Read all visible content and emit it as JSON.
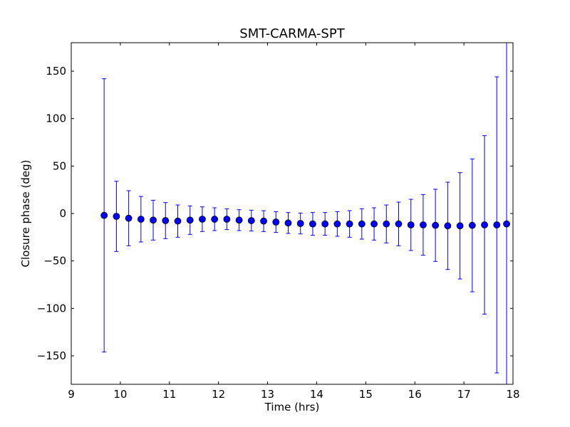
{
  "chart_data": {
    "type": "scatter",
    "title": "SMT-CARMA-SPT",
    "xlabel": "Time (hrs)",
    "ylabel": "Closure phase (deg)",
    "xlim": [
      9,
      18
    ],
    "ylim": [
      -180,
      180
    ],
    "xticks": [
      "9",
      "10",
      "11",
      "12",
      "13",
      "14",
      "15",
      "16",
      "17",
      "18"
    ],
    "yticks": [
      "−150",
      "−100",
      "−50",
      "0",
      "50",
      "100",
      "150"
    ],
    "grid": false,
    "marker_color": "#0000ff",
    "errorbar_color": "#0000ff",
    "points": [
      {
        "x": 9.67,
        "y": -2,
        "err_lo": 144,
        "err_hi": 144
      },
      {
        "x": 9.92,
        "y": -3,
        "err_lo": 37,
        "err_hi": 37
      },
      {
        "x": 10.17,
        "y": -5,
        "err_lo": 29,
        "err_hi": 29
      },
      {
        "x": 10.42,
        "y": -6,
        "err_lo": 24,
        "err_hi": 24
      },
      {
        "x": 10.67,
        "y": -7,
        "err_lo": 21,
        "err_hi": 21
      },
      {
        "x": 10.92,
        "y": -7.5,
        "err_lo": 19,
        "err_hi": 19
      },
      {
        "x": 11.17,
        "y": -8,
        "err_lo": 17,
        "err_hi": 17
      },
      {
        "x": 11.42,
        "y": -7,
        "err_lo": 15,
        "err_hi": 15
      },
      {
        "x": 11.67,
        "y": -6,
        "err_lo": 13,
        "err_hi": 13
      },
      {
        "x": 11.92,
        "y": -6,
        "err_lo": 12,
        "err_hi": 12
      },
      {
        "x": 12.17,
        "y": -6,
        "err_lo": 11,
        "err_hi": 11
      },
      {
        "x": 12.42,
        "y": -7,
        "err_lo": 11,
        "err_hi": 11
      },
      {
        "x": 12.67,
        "y": -7.5,
        "err_lo": 11,
        "err_hi": 11
      },
      {
        "x": 12.92,
        "y": -8,
        "err_lo": 11,
        "err_hi": 11
      },
      {
        "x": 13.17,
        "y": -9,
        "err_lo": 11,
        "err_hi": 11
      },
      {
        "x": 13.42,
        "y": -10,
        "err_lo": 11,
        "err_hi": 11
      },
      {
        "x": 13.67,
        "y": -10.5,
        "err_lo": 11,
        "err_hi": 11
      },
      {
        "x": 13.92,
        "y": -11,
        "err_lo": 12,
        "err_hi": 12
      },
      {
        "x": 14.17,
        "y": -11,
        "err_lo": 12,
        "err_hi": 12
      },
      {
        "x": 14.42,
        "y": -11,
        "err_lo": 13,
        "err_hi": 13
      },
      {
        "x": 14.67,
        "y": -11,
        "err_lo": 14,
        "err_hi": 14
      },
      {
        "x": 14.92,
        "y": -11,
        "err_lo": 16,
        "err_hi": 16
      },
      {
        "x": 15.17,
        "y": -11,
        "err_lo": 17,
        "err_hi": 17
      },
      {
        "x": 15.42,
        "y": -11,
        "err_lo": 20,
        "err_hi": 20
      },
      {
        "x": 15.67,
        "y": -11,
        "err_lo": 23,
        "err_hi": 23
      },
      {
        "x": 15.92,
        "y": -12,
        "err_lo": 27,
        "err_hi": 27
      },
      {
        "x": 16.17,
        "y": -12,
        "err_lo": 32,
        "err_hi": 32
      },
      {
        "x": 16.42,
        "y": -12.5,
        "err_lo": 38,
        "err_hi": 38
      },
      {
        "x": 16.67,
        "y": -13,
        "err_lo": 46,
        "err_hi": 46
      },
      {
        "x": 16.92,
        "y": -13,
        "err_lo": 56,
        "err_hi": 56
      },
      {
        "x": 17.17,
        "y": -12.5,
        "err_lo": 70,
        "err_hi": 70
      },
      {
        "x": 17.42,
        "y": -12,
        "err_lo": 94,
        "err_hi": 94
      },
      {
        "x": 17.67,
        "y": -12,
        "err_lo": 156,
        "err_hi": 156
      },
      {
        "x": 17.87,
        "y": -11,
        "err_lo": 200,
        "err_hi": 200
      }
    ]
  }
}
